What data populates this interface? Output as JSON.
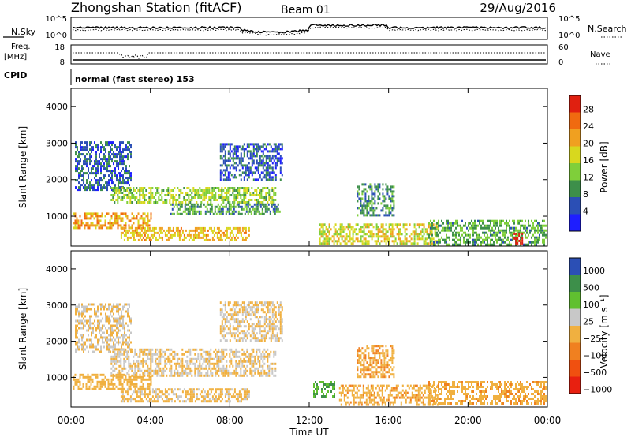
{
  "header": {
    "title": "Zhongshan Station (fitACF)",
    "beam": "Beam 01",
    "date": "29/Aug/2016",
    "cpid_label": "CPID",
    "cpid_text": "normal (fast stereo) 153"
  },
  "summary": {
    "nsky_label": "N.Sky",
    "nsearch_label": "N.Search",
    "noise_ticks": [
      "10^5",
      "10^0"
    ],
    "freq_label": "Freq.",
    "freq_unit": "[MHz]",
    "freq_ticks": [
      "18",
      "8"
    ],
    "nave_label": "Nave",
    "nave_ticks": [
      "60",
      "0"
    ]
  },
  "x_axis": {
    "label": "Time UT",
    "ticks": [
      "00:00",
      "04:00",
      "08:00",
      "12:00",
      "16:00",
      "20:00",
      "00:00"
    ],
    "hours": [
      0,
      4,
      8,
      12,
      16,
      20,
      24
    ]
  },
  "chart_data": [
    {
      "type": "heatmap",
      "title": "",
      "xlabel": "",
      "ylabel": "Slant Range [km]",
      "xlim": [
        0,
        24
      ],
      "ylim": [
        180,
        4500
      ],
      "yticks": [
        "1000",
        "2000",
        "3000",
        "4000"
      ],
      "colorbar": {
        "label": "Power [dB]",
        "ticks": [
          "4",
          "8",
          "12",
          "16",
          "20",
          "24",
          "28"
        ],
        "range": [
          0,
          30
        ],
        "colors": [
          "#1e1eff",
          "#2b4fb5",
          "#3d8f4a",
          "#7fcf3a",
          "#d8d81e",
          "#f0a020",
          "#f06a10",
          "#e02010"
        ]
      },
      "echo_regions": [
        {
          "t0": 0.2,
          "t1": 3.0,
          "r0": 1700,
          "r1": 3050,
          "power": 6
        },
        {
          "t0": 2.0,
          "t1": 10.3,
          "r0": 1350,
          "r1": 1800,
          "power": 14
        },
        {
          "t0": 5.0,
          "t1": 10.5,
          "r0": 1050,
          "r1": 1350,
          "power": 10
        },
        {
          "t0": 7.5,
          "t1": 10.6,
          "r0": 2000,
          "r1": 3000,
          "power": 6
        },
        {
          "t0": 0.1,
          "t1": 4.0,
          "r0": 650,
          "r1": 1100,
          "power": 21
        },
        {
          "t0": 2.5,
          "t1": 9.0,
          "r0": 350,
          "r1": 700,
          "power": 19
        },
        {
          "t0": 12.5,
          "t1": 18.5,
          "r0": 250,
          "r1": 800,
          "power": 17
        },
        {
          "t0": 14.4,
          "t1": 16.3,
          "r0": 1000,
          "r1": 1900,
          "power": 9
        },
        {
          "t0": 18.0,
          "t1": 23.9,
          "r0": 250,
          "r1": 900,
          "power": 11
        },
        {
          "t0": 22.3,
          "t1": 22.7,
          "r0": 250,
          "r1": 550,
          "power": 29
        }
      ]
    },
    {
      "type": "heatmap",
      "title": "",
      "xlabel": "Time UT",
      "ylabel": "Slant Range [km]",
      "xlim": [
        0,
        24
      ],
      "ylim": [
        180,
        4500
      ],
      "yticks": [
        "1000",
        "2000",
        "3000",
        "4000"
      ],
      "colorbar": {
        "label": "Velocity [m s⁻¹]",
        "ticks": [
          "1000",
          "500",
          "100",
          "25",
          "−25",
          "−100",
          "−500",
          "−1000"
        ],
        "range": [
          -1200,
          1200
        ],
        "colors": [
          "#e82010",
          "#f05010",
          "#f08020",
          "#f0b040",
          "#c8c8c8",
          "#60c030",
          "#3d8f4a",
          "#2b4fb5"
        ]
      },
      "echo_regions": [
        {
          "t0": 0.2,
          "t1": 3.0,
          "r0": 1700,
          "r1": 3050,
          "velocity": 0
        },
        {
          "t0": 2.0,
          "t1": 10.3,
          "r0": 1050,
          "r1": 1800,
          "velocity": 0
        },
        {
          "t0": 7.5,
          "t1": 10.6,
          "r0": 2000,
          "r1": 3100,
          "velocity": 0
        },
        {
          "t0": 0.1,
          "t1": 4.0,
          "r0": 650,
          "r1": 1100,
          "velocity": -150
        },
        {
          "t0": 2.5,
          "t1": 9.0,
          "r0": 350,
          "r1": 700,
          "velocity": -80
        },
        {
          "t0": 12.2,
          "t1": 13.3,
          "r0": 500,
          "r1": 900,
          "velocity": 600
        },
        {
          "t0": 13.5,
          "t1": 18.5,
          "r0": 250,
          "r1": 800,
          "velocity": -200
        },
        {
          "t0": 14.4,
          "t1": 16.3,
          "r0": 1000,
          "r1": 1900,
          "velocity": -250
        },
        {
          "t0": 18.0,
          "t1": 23.9,
          "r0": 250,
          "r1": 900,
          "velocity": -200
        }
      ]
    }
  ]
}
